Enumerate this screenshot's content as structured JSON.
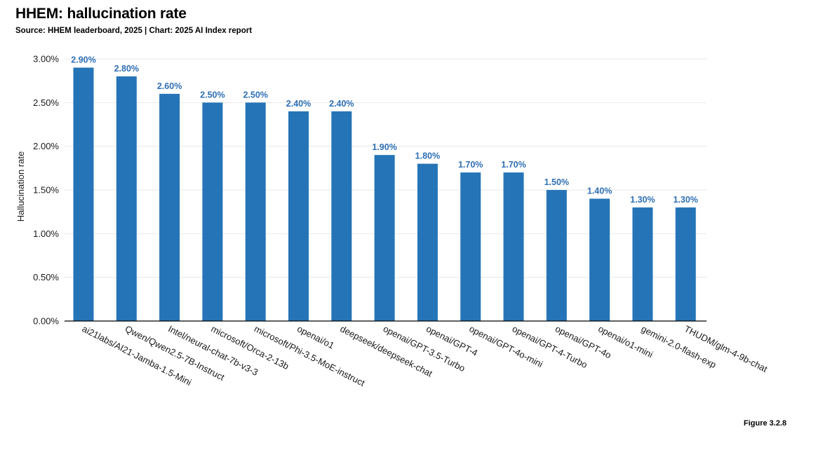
{
  "title": "HHEM: hallucination rate",
  "subtitle": "Source: HHEM leaderboard, 2025 | Chart: 2025 AI Index report",
  "figure_label": "Figure 3.2.8",
  "colors": {
    "bar": "#2574b7",
    "data_label": "#2f6fb5",
    "grid": "#e8e8e8",
    "axis": "#000000"
  },
  "chart_data": {
    "type": "bar",
    "title": "HHEM: hallucination rate",
    "subtitle": "Source: HHEM leaderboard, 2025 | Chart: 2025 AI Index report",
    "xlabel": "",
    "ylabel": "Hallucination rate",
    "ylim": [
      0,
      3.0
    ],
    "yticks": [
      0,
      0.5,
      1.0,
      1.5,
      2.0,
      2.5,
      3.0
    ],
    "ytick_labels": [
      "0.00%",
      "0.50%",
      "1.00%",
      "1.50%",
      "2.00%",
      "2.50%",
      "3.00%"
    ],
    "grid": true,
    "categories": [
      "ai21labs/AI21-Jamba-1.5-Mini",
      "Qwen/Qwen2.5-7B-Instruct",
      "Intel/neural-chat-7b-v3-3",
      "microsoft/Orca-2-13b",
      "microsoft/Phi-3.5-MoE-instruct",
      "openai/o1",
      "deepseek/deepseek-chat",
      "openai/GPT-3.5-Turbo",
      "openai/GPT-4",
      "openai/GPT-4o-mini",
      "openai/GPT-4-Turbo",
      "openai/GPT-4o",
      "openai/o1-mini",
      "gemini-2.0-flash-exp",
      "THUDM/glm-4-9b-chat"
    ],
    "values": [
      2.9,
      2.8,
      2.6,
      2.5,
      2.5,
      2.4,
      2.4,
      1.9,
      1.8,
      1.7,
      1.7,
      1.5,
      1.4,
      1.3,
      1.3
    ],
    "data_labels": [
      "2.90%",
      "2.80%",
      "2.60%",
      "2.50%",
      "2.50%",
      "2.40%",
      "2.40%",
      "1.90%",
      "1.80%",
      "1.70%",
      "1.70%",
      "1.50%",
      "1.40%",
      "1.30%",
      "1.30%"
    ]
  }
}
